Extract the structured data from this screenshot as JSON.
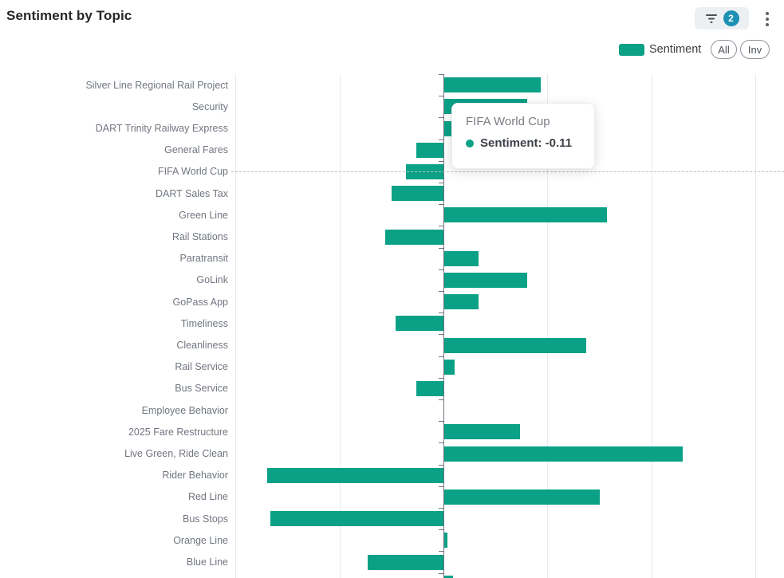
{
  "header": {
    "title": "Sentiment by Topic",
    "filter_badge_count": "2"
  },
  "legend": {
    "series_label": "Sentiment",
    "all_button": "All",
    "inv_button": "Inv"
  },
  "tooltip": {
    "title": "FIFA World Cup",
    "value_label": "Sentiment: -0.11"
  },
  "colors": {
    "bar": "#0aa186",
    "filter_badge": "#1d90b4",
    "filter_icon": "#4a5056"
  },
  "chart_data": {
    "type": "bar",
    "orientation": "horizontal",
    "title": "Sentiment by Topic",
    "series_name": "Sentiment",
    "xlabel": "",
    "ylabel": "Topic",
    "xlim": [
      -0.6,
      0.9
    ],
    "grid_values": [
      -0.6,
      -0.3,
      0,
      0.3,
      0.6,
      0.9
    ],
    "grid": true,
    "legend_position": "top-right",
    "highlighted_category": "FIFA World Cup",
    "highlighted_value": -0.11,
    "categories": [
      "Silver Line Regional Rail Project",
      "Security",
      "DART Trinity Railway Express",
      "General Fares",
      "FIFA World Cup",
      "DART Sales Tax",
      "Green Line",
      "Rail Stations",
      "Paratransit",
      "GoLink",
      "GoPass App",
      "Timeliness",
      "Cleanliness",
      "Rail Service",
      "Bus Service",
      "Employee Behavior",
      "2025 Fare Restructure",
      "Live Green, Ride Clean",
      "Rider Behavior",
      "Red Line",
      "Bus Stops",
      "Orange Line",
      "Blue Line"
    ],
    "values": [
      0.28,
      0.24,
      0.05,
      -0.08,
      -0.11,
      -0.15,
      0.47,
      -0.17,
      0.1,
      0.24,
      0.1,
      -0.14,
      0.41,
      0.03,
      -0.08,
      0,
      0.22,
      0.69,
      -0.51,
      0.45,
      -0.5,
      0.01,
      -0.22
    ]
  }
}
